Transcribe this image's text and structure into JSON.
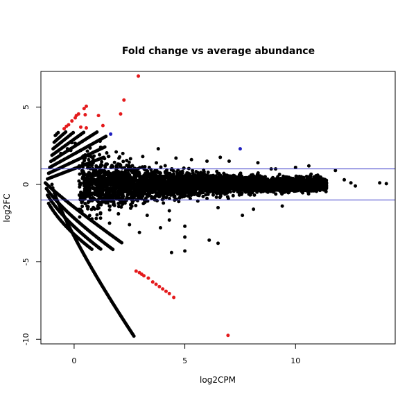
{
  "chart_data": {
    "type": "scatter",
    "title": "Fold change vs average abundance",
    "xlabel": "log2CPM",
    "ylabel": "log2FC",
    "xlim": [
      -1.5,
      14.5
    ],
    "ylim": [
      -10.3,
      7.3
    ],
    "x_ticks": [
      0,
      5,
      10
    ],
    "y_ticks": [
      -10,
      -5,
      0,
      5
    ],
    "hlines": [
      1,
      -1
    ],
    "grid": false,
    "legend": "none",
    "colors": {
      "points": "#000000",
      "highlight_red": "#e41a1c",
      "highlight_blue": "#1f1fbf",
      "hline": "#3a3ac8",
      "frame": "#000000"
    },
    "series": [
      {
        "color": "highlight_red",
        "points": [
          [
            -0.45,
            3.6
          ],
          [
            -0.35,
            3.75
          ],
          [
            -0.25,
            3.85
          ],
          [
            -0.1,
            4.1
          ],
          [
            0.05,
            4.3
          ],
          [
            0.1,
            4.45
          ],
          [
            0.2,
            4.55
          ],
          [
            0.45,
            4.9
          ],
          [
            0.55,
            5.05
          ],
          [
            0.3,
            3.7
          ],
          [
            0.55,
            3.65
          ],
          [
            0.5,
            4.5
          ],
          [
            1.1,
            4.45
          ],
          [
            1.3,
            3.8
          ],
          [
            2.1,
            4.55
          ],
          [
            2.25,
            5.45
          ],
          [
            2.9,
            7.0
          ],
          [
            6.95,
            -9.75
          ],
          [
            2.8,
            -5.6
          ],
          [
            2.95,
            -5.7
          ],
          [
            3.05,
            -5.8
          ],
          [
            3.15,
            -5.9
          ],
          [
            3.35,
            -6.05
          ],
          [
            3.55,
            -6.3
          ],
          [
            3.7,
            -6.45
          ],
          [
            3.85,
            -6.6
          ],
          [
            4.0,
            -6.75
          ],
          [
            4.15,
            -6.9
          ],
          [
            4.3,
            -7.05
          ],
          [
            4.5,
            -7.3
          ]
        ]
      },
      {
        "color": "highlight_blue",
        "points": [
          [
            1.65,
            3.25
          ],
          [
            7.5,
            2.3
          ]
        ]
      }
    ],
    "scattered_points": [
      [
        -0.9,
        1.6
      ],
      [
        -0.6,
        2.0
      ],
      [
        -0.3,
        2.3
      ],
      [
        -0.1,
        2.7
      ],
      [
        0.05,
        2.65
      ],
      [
        -0.15,
        2.2
      ],
      [
        0.3,
        2.2
      ],
      [
        0.6,
        2.15
      ],
      [
        1.2,
        2.4
      ],
      [
        1.9,
        2.1
      ],
      [
        2.2,
        2.0
      ],
      [
        3.8,
        2.3
      ],
      [
        5.3,
        1.6
      ],
      [
        6.6,
        1.75
      ],
      [
        7.0,
        1.5
      ],
      [
        8.3,
        1.4
      ],
      [
        9.1,
        1.0
      ],
      [
        10.6,
        1.2
      ],
      [
        11.8,
        0.9
      ],
      [
        12.2,
        0.3
      ],
      [
        12.5,
        0.1
      ],
      [
        13.8,
        0.1
      ],
      [
        14.1,
        0.05
      ],
      [
        12.7,
        -0.1
      ],
      [
        1.0,
        -2.2
      ],
      [
        1.6,
        -2.5
      ],
      [
        2.5,
        -2.6
      ],
      [
        2.95,
        -3.1
      ],
      [
        3.9,
        -2.8
      ],
      [
        4.3,
        -2.3
      ],
      [
        4.4,
        -4.4
      ],
      [
        5.0,
        -2.7
      ],
      [
        5.0,
        -3.4
      ],
      [
        6.1,
        -3.6
      ],
      [
        6.5,
        -3.8
      ],
      [
        6.5,
        -1.5
      ],
      [
        7.6,
        -2.0
      ],
      [
        8.1,
        -1.6
      ],
      [
        9.4,
        -1.4
      ],
      [
        5.0,
        -4.3
      ],
      [
        3.3,
        -2.0
      ],
      [
        2.0,
        -1.9
      ],
      [
        4.3,
        -1.7
      ],
      [
        6.0,
        1.5
      ],
      [
        4.6,
        1.7
      ],
      [
        3.1,
        1.8
      ],
      [
        8.9,
        1.0
      ],
      [
        10.0,
        1.1
      ],
      [
        11.0,
        0.6
      ]
    ]
  }
}
